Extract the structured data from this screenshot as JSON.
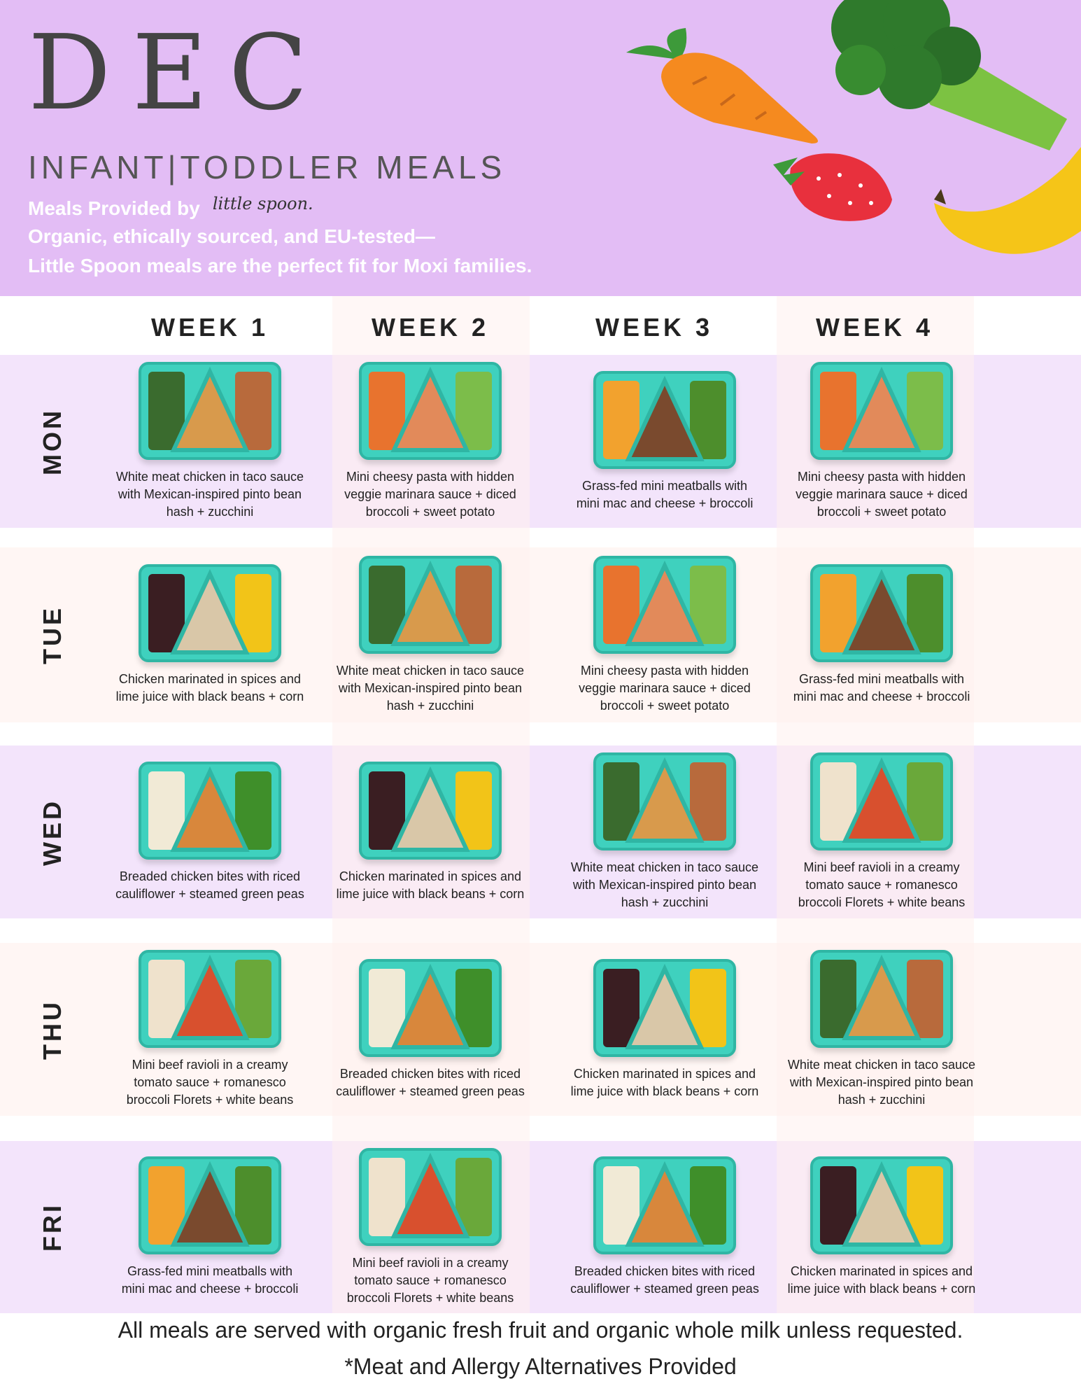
{
  "header": {
    "month": "DEC",
    "subtitle": "INFANT|TODDLER MEALS",
    "provided_by": "Meals Provided by",
    "brand": "little spoon.",
    "tagline_1": "Organic, ethically sourced, and EU-tested—",
    "tagline_2": "Little Spoon meals are the perfect fit for Moxi families."
  },
  "weeks": [
    "WEEK 1",
    "WEEK 2",
    "WEEK 3",
    "WEEK 4"
  ],
  "days": [
    "MON",
    "TUE",
    "WED",
    "THU",
    "FRI"
  ],
  "meals": [
    [
      {
        "desc": "White meat chicken in taco sauce with Mexican-inspired pinto bean hash + zucchini",
        "left": "#3a6b2e",
        "mid": "#d89a4c",
        "right": "#b86a3c"
      },
      {
        "desc": "Mini cheesy pasta with hidden veggie marinara sauce + diced broccoli + sweet potato",
        "left": "#e8732e",
        "mid": "#e28a5a",
        "right": "#7cbd4a"
      },
      {
        "desc": "Grass-fed mini meatballs with mini mac and cheese + broccoli",
        "left": "#f2a22e",
        "mid": "#7a4a2e",
        "right": "#4d8e2c"
      },
      {
        "desc": "Mini cheesy pasta with hidden veggie marinara sauce + diced broccoli + sweet potato",
        "left": "#e8732e",
        "mid": "#e28a5a",
        "right": "#7cbd4a"
      }
    ],
    [
      {
        "desc": "Chicken marinated in spices and lime juice with black beans + corn",
        "left": "#3a1e22",
        "mid": "#d9c7a8",
        "right": "#f2c418"
      },
      {
        "desc": "White meat chicken in taco sauce with Mexican-inspired pinto bean hash + zucchini",
        "left": "#3a6b2e",
        "mid": "#d89a4c",
        "right": "#b86a3c"
      },
      {
        "desc": "Mini cheesy pasta with hidden veggie marinara sauce + diced broccoli + sweet potato",
        "left": "#e8732e",
        "mid": "#e28a5a",
        "right": "#7cbd4a"
      },
      {
        "desc": "Grass-fed mini meatballs with mini mac and cheese + broccoli",
        "left": "#f2a22e",
        "mid": "#7a4a2e",
        "right": "#4d8e2c"
      }
    ],
    [
      {
        "desc": "Breaded chicken bites  with riced cauliflower + steamed green peas",
        "left": "#f1ead6",
        "mid": "#d8873c",
        "right": "#3f8f2a"
      },
      {
        "desc": "Chicken marinated in spices and lime juice with black beans + corn",
        "left": "#3a1e22",
        "mid": "#d9c7a8",
        "right": "#f2c418"
      },
      {
        "desc": "White meat chicken in taco sauce with Mexican-inspired pinto bean hash + zucchini",
        "left": "#3a6b2e",
        "mid": "#d89a4c",
        "right": "#b86a3c"
      },
      {
        "desc": "Mini beef ravioli in a creamy tomato sauce + romanesco broccoli Florets + white beans",
        "left": "#efe2cc",
        "mid": "#d8502e",
        "right": "#6aa83a"
      }
    ],
    [
      {
        "desc": "Mini beef ravioli in a creamy tomato sauce + romanesco broccoli Florets + white beans",
        "left": "#efe2cc",
        "mid": "#d8502e",
        "right": "#6aa83a"
      },
      {
        "desc": "Breaded chicken bites  with riced cauliflower + steamed green peas",
        "left": "#f1ead6",
        "mid": "#d8873c",
        "right": "#3f8f2a"
      },
      {
        "desc": "Chicken marinated in spices and lime juice with black beans + corn",
        "left": "#3a1e22",
        "mid": "#d9c7a8",
        "right": "#f2c418"
      },
      {
        "desc": "White meat chicken in taco sauce with Mexican-inspired pinto bean hash + zucchini",
        "left": "#3a6b2e",
        "mid": "#d89a4c",
        "right": "#b86a3c"
      }
    ],
    [
      {
        "desc": "Grass-fed mini meatballs with mini mac and cheese + broccoli",
        "left": "#f2a22e",
        "mid": "#7a4a2e",
        "right": "#4d8e2c"
      },
      {
        "desc": "Mini beef ravioli in a creamy tomato sauce + romanesco broccoli Florets + white beans",
        "left": "#efe2cc",
        "mid": "#d8502e",
        "right": "#6aa83a"
      },
      {
        "desc": "Breaded chicken bites  with riced cauliflower + steamed green peas",
        "left": "#f1ead6",
        "mid": "#d8873c",
        "right": "#3f8f2a"
      },
      {
        "desc": "Chicken marinated in spices and lime juice with black beans + corn",
        "left": "#3a1e22",
        "mid": "#d9c7a8",
        "right": "#f2c418"
      }
    ]
  ],
  "footer": {
    "line_1": "All meals are served with organic fresh fruit and organic whole milk unless requested.",
    "line_2": "*Meat and Allergy Alternatives Provided"
  },
  "colors": {
    "header_bg": "#e3bdf5",
    "row_purple": "#f3e4fb",
    "row_pink": "#fff6f4",
    "week_col_tint": "#fff1ee",
    "tray": "#3fd1be"
  }
}
